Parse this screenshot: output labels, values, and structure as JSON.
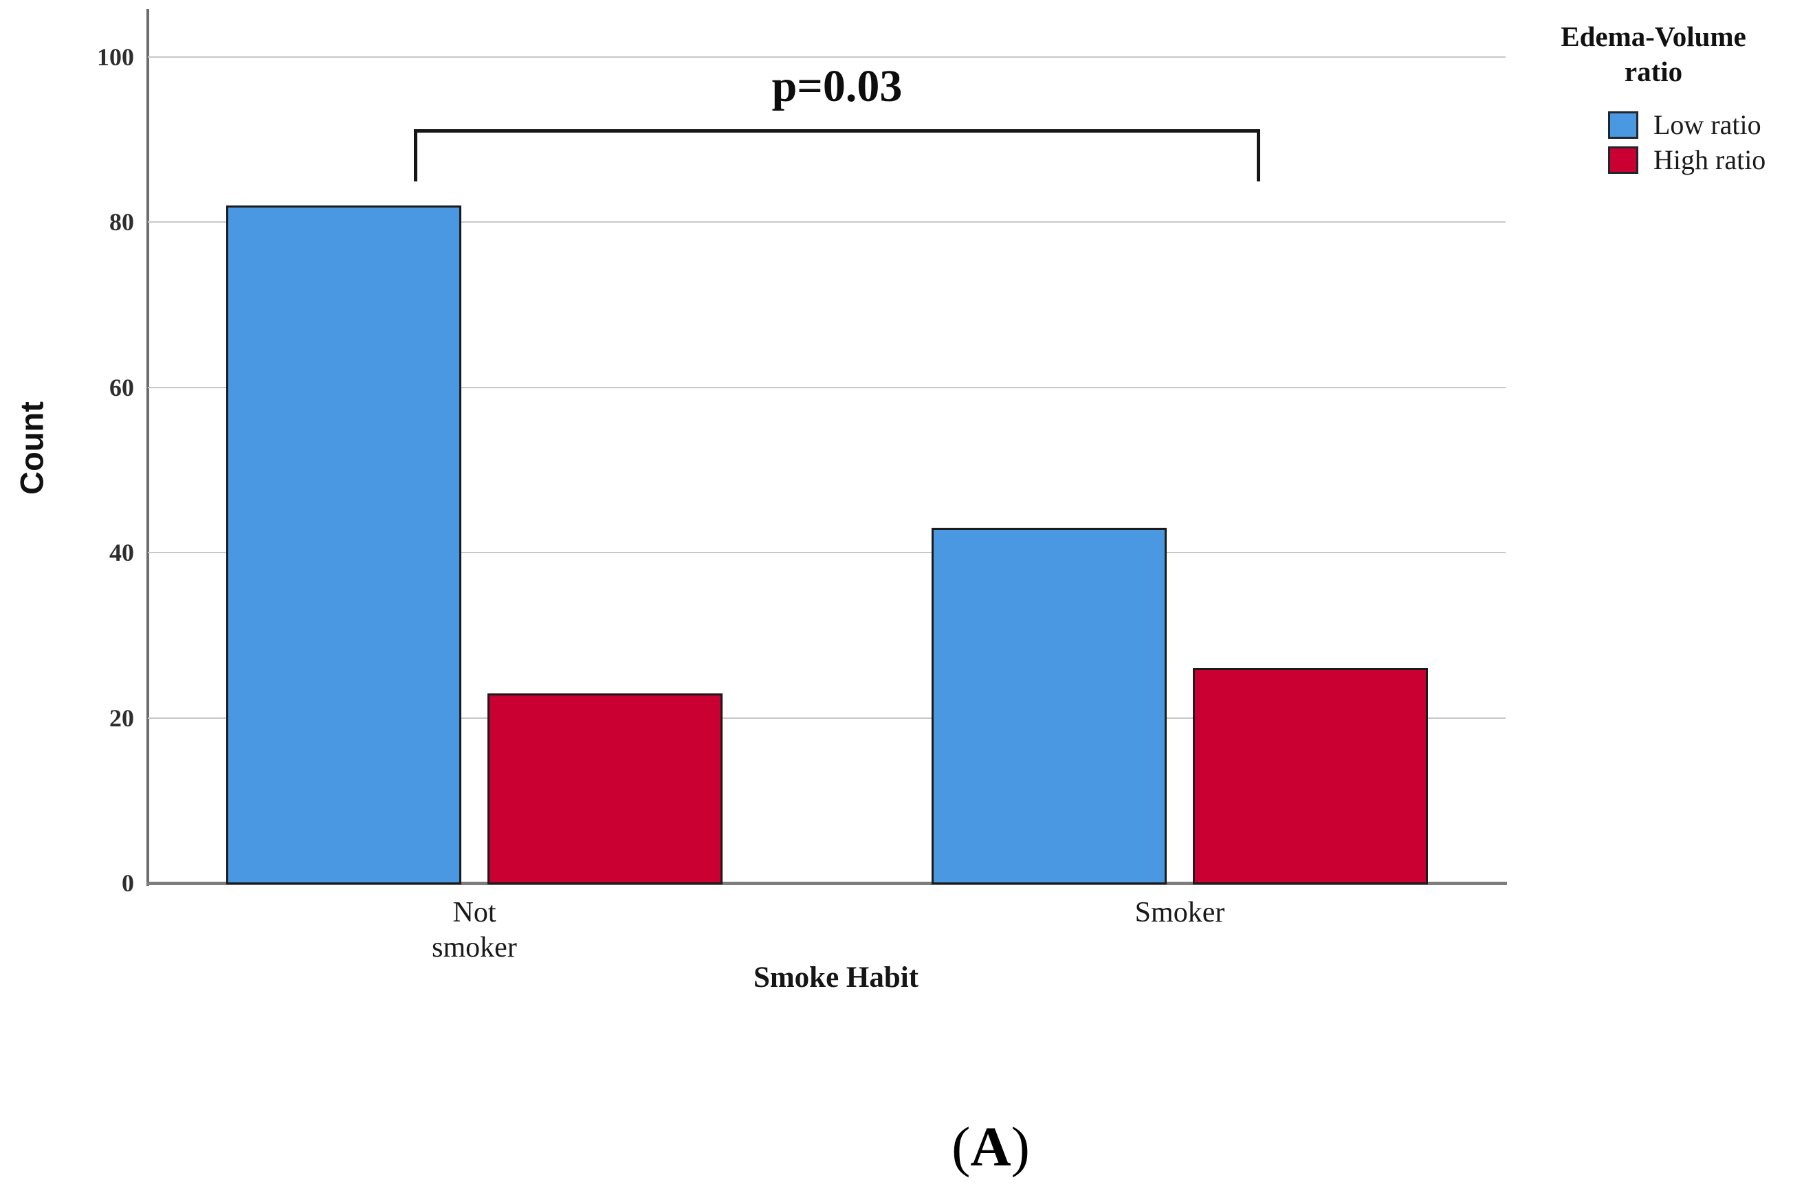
{
  "chart_data": {
    "type": "bar",
    "title": "",
    "xlabel": "Smoke Habit",
    "ylabel": "Count",
    "categories": [
      "Not\nsmoker",
      "Smoker"
    ],
    "series": [
      {
        "name": "Low ratio",
        "color": "#4A98E2",
        "values": [
          82,
          43
        ]
      },
      {
        "name": "High ratio",
        "color": "#CB0032",
        "values": [
          23,
          26
        ]
      }
    ],
    "ylim": [
      0,
      100
    ],
    "yticks": [
      0,
      20,
      40,
      60,
      80,
      100
    ],
    "grid": true,
    "legend_title": "Edema-Volume ratio",
    "legend_title_lines": [
      "Edema-Volume",
      "ratio"
    ],
    "legend_position": "top-right",
    "annotation": {
      "text": "p=0.03",
      "connects": [
        "Not smoker",
        "Smoker"
      ]
    }
  },
  "figure": {
    "caption_open": "(",
    "caption_letter": "A",
    "caption_close": ")"
  }
}
